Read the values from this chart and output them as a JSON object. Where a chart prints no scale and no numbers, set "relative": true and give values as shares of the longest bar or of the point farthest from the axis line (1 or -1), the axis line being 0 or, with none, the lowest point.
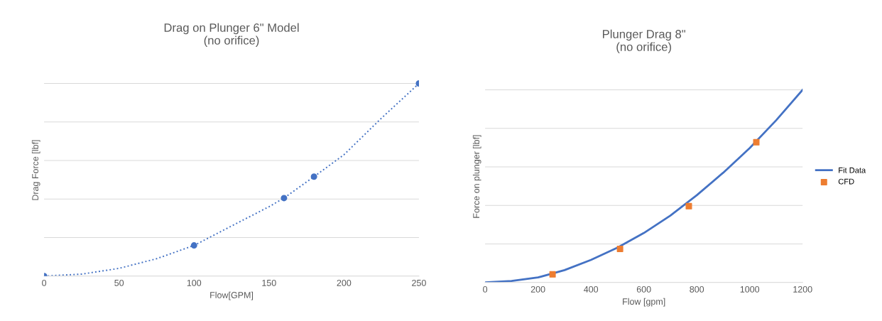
{
  "chart_data": [
    {
      "type": "scatter",
      "title": "Drag on Plunger 6\" Model",
      "subtitle": "(no orifice)",
      "xlabel": "Flow[GPM]",
      "ylabel": "Drag Force [lbf]",
      "relative": true,
      "xlim": [
        0,
        250
      ],
      "xticks": [
        0,
        50,
        100,
        150,
        200,
        250
      ],
      "tick_labels": "x",
      "grid": "y",
      "legend": false,
      "series": [
        {
          "type": "line",
          "color": "#4472c4",
          "line_style": "dotted",
          "marker": "none",
          "x": [
            0,
            25,
            50,
            75,
            100,
            125,
            150,
            160,
            180,
            200,
            225,
            250
          ],
          "values": [
            0,
            0.01,
            0.04,
            0.09,
            0.159,
            0.26,
            0.36,
            0.405,
            0.516,
            0.63,
            0.82,
            1
          ]
        },
        {
          "color": "#4472c4",
          "marker": "circle",
          "x": [
            0,
            100,
            160,
            180,
            250
          ],
          "values": [
            0,
            0.159,
            0.405,
            0.516,
            1
          ]
        }
      ]
    },
    {
      "type": "line",
      "title": "Plunger Drag 8\"",
      "subtitle": "(no orifice)",
      "xlabel": "Flow [gpm]",
      "ylabel": "Force on plunger [lbf]",
      "relative": true,
      "xlim": [
        0,
        1200
      ],
      "xticks": [
        0,
        200,
        400,
        600,
        800,
        1000,
        1200
      ],
      "tick_labels": "x",
      "grid": "y",
      "legend": "right",
      "series": [
        {
          "name": "Fit Data",
          "color": "#4472c4",
          "line_style": "solid",
          "marker": "none",
          "x": [
            0,
            100,
            200,
            300,
            400,
            500,
            600,
            700,
            800,
            900,
            1000,
            1100,
            1200
          ],
          "values": [
            0,
            0.008,
            0.026,
            0.064,
            0.117,
            0.181,
            0.257,
            0.347,
            0.453,
            0.57,
            0.698,
            0.842,
            1
          ]
        },
        {
          "type": "scatter",
          "name": "CFD",
          "color": "#ed7d31",
          "marker": "square",
          "x": [
            255,
            510,
            770,
            1025
          ],
          "values": [
            0.042,
            0.174,
            0.396,
            0.728
          ]
        }
      ]
    }
  ]
}
